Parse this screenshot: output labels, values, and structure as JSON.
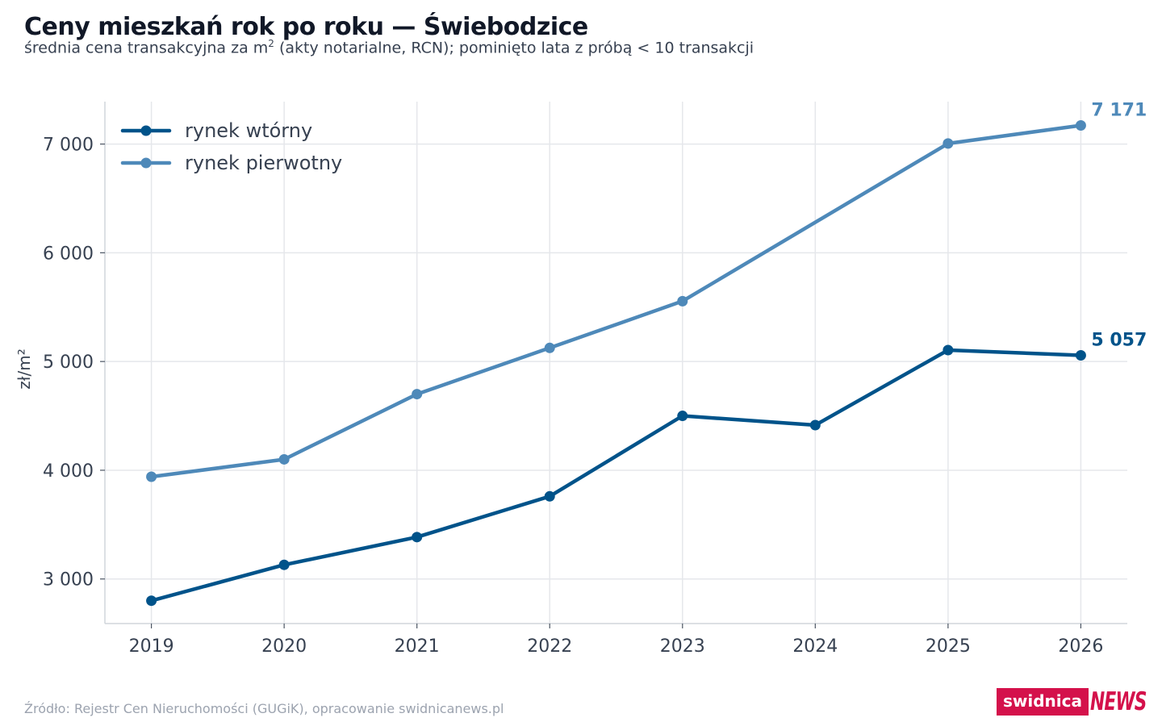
{
  "header": {
    "title": "Ceny mieszkań rok po roku — Świebodzice",
    "subtitle_pre": "średnia cena transakcyjna za m",
    "subtitle_sup": "2",
    "subtitle_post": " (akty notarialne, RCN); pominięto lata z próbą < 10 transakcji"
  },
  "footer": {
    "source": "Źródło: Rejestr Cen Nieruchomości (GUGiK), opracowanie swidnicanews.pl",
    "logo_main": "swidnica",
    "logo_accent": "NEWS"
  },
  "colors": {
    "secondary": "#00538a",
    "primary": "#4e89b9",
    "grid": "#e5e7eb",
    "axis": "#d1d5db",
    "logo": "#d4114b"
  },
  "chart_data": {
    "type": "line",
    "x": [
      2019,
      2020,
      2021,
      2022,
      2023,
      2024,
      2025,
      2026
    ],
    "ylabel": "zł/m²",
    "xlim": [
      2018.65,
      2026.35
    ],
    "ylim": [
      2590,
      7390
    ],
    "yticks": [
      3000,
      4000,
      5000,
      6000,
      7000
    ],
    "ytick_labels": [
      "3 000",
      "4 000",
      "5 000",
      "6 000",
      "7 000"
    ],
    "grid": true,
    "legend_position": "top-left",
    "series": [
      {
        "name": "rynek wtórny",
        "color": "#00538a",
        "values": [
          2800,
          3130,
          3385,
          3760,
          4500,
          4415,
          5105,
          5057
        ],
        "marked": [
          true,
          true,
          true,
          true,
          true,
          true,
          true,
          true
        ],
        "end_label": "5 057"
      },
      {
        "name": "rynek pierwotny",
        "color": "#4e89b9",
        "values": [
          3940,
          4100,
          4700,
          5125,
          5555,
          null,
          7005,
          7171
        ],
        "marked": [
          true,
          true,
          true,
          true,
          true,
          false,
          true,
          true
        ],
        "end_label": "7 171"
      }
    ]
  }
}
